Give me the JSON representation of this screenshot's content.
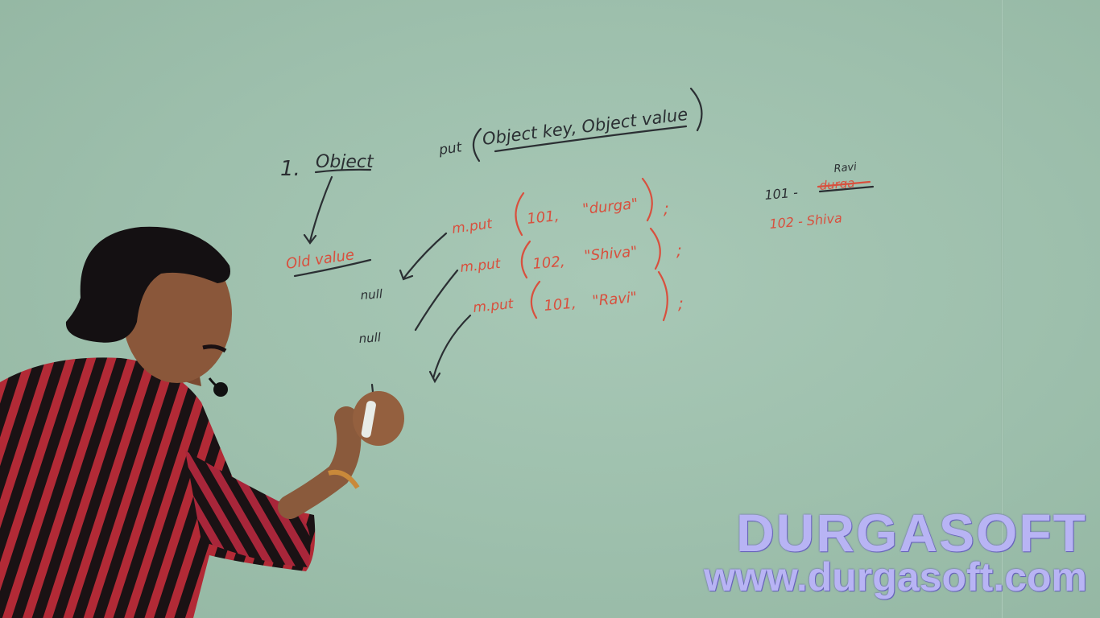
{
  "board": {
    "left_notes": {
      "number": "1.",
      "return_type": "Object",
      "return_note": "Old value",
      "null_1": "null",
      "null_2": "null"
    },
    "signature": {
      "prefix": "put",
      "params": "Object key, Object value"
    },
    "calls": [
      {
        "method": "m.put",
        "key": "101,",
        "value": "\"durga\"",
        "end": ";"
      },
      {
        "method": "m.put",
        "key": "102,",
        "value": "\"Shiva\"",
        "end": ";"
      },
      {
        "method": "m.put",
        "key": "101,",
        "value": "\"Ravi\"",
        "end": ";"
      }
    ],
    "map_table": {
      "row1_key": "101 -",
      "row1_old": "durga",
      "row1_new": "Ravi",
      "row2": "102 - Shiva"
    }
  },
  "watermark": {
    "brand": "DURGASOFT",
    "url": "www.durgasoft.com"
  },
  "colors": {
    "board": "#9fc1ae",
    "marker_black": "#2b2f33",
    "marker_red": "#d8503e",
    "watermark": "#b8b4f4"
  }
}
